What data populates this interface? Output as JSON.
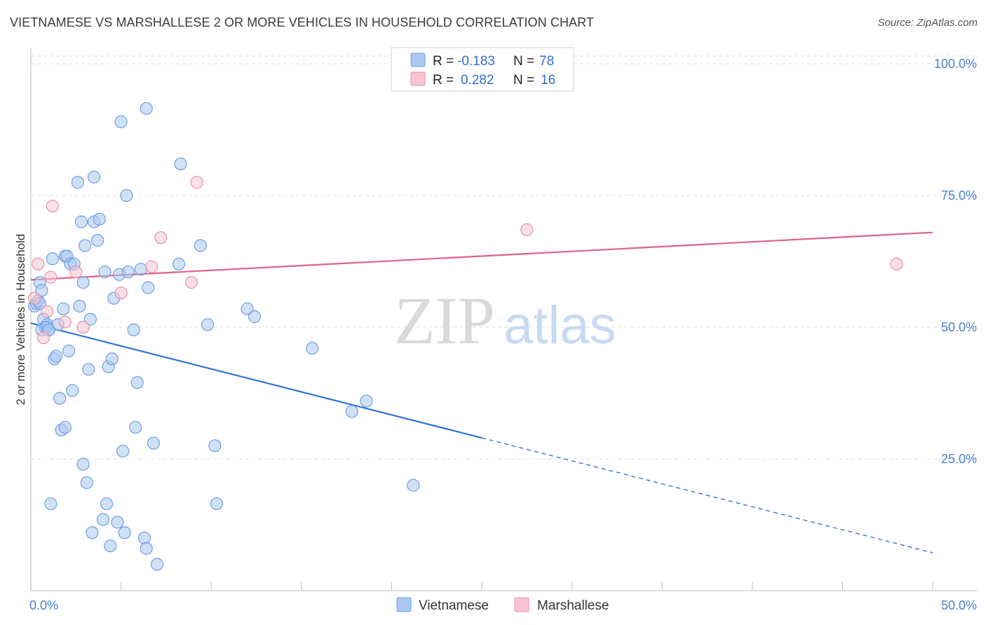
{
  "header": {
    "title": "VIETNAMESE VS MARSHALLESE 2 OR MORE VEHICLES IN HOUSEHOLD CORRELATION CHART",
    "source": "Source: ZipAtlas.com"
  },
  "watermark": {
    "zip": "ZIP",
    "atlas": "atlas"
  },
  "colors": {
    "vietnamese_fill": "#aac8f0",
    "vietnamese_stroke": "#6f9fe0",
    "vietnamese_line": "#2f74d0",
    "marshallese_fill": "#f8c4d2",
    "marshallese_stroke": "#eb90aa",
    "marshallese_line": "#e0608a",
    "tick_text": "#4a7fd1",
    "grid": "#dcdcdc"
  },
  "legend": {
    "rows": [
      {
        "r_label": "R =",
        "r_value": "-0.183",
        "n_label": "N =",
        "n_value": "78"
      },
      {
        "r_label": "R =",
        "r_value": "0.282",
        "n_label": "N =",
        "n_value": "16"
      }
    ]
  },
  "chart_data": {
    "type": "scatter",
    "title": "VIETNAMESE VS MARSHALLESE 2 OR MORE VEHICLES IN HOUSEHOLD CORRELATION CHART",
    "xlabel": "",
    "ylabel": "2 or more Vehicles in Household",
    "xlim": [
      0,
      50
    ],
    "ylim": [
      0,
      102
    ],
    "x_tick_labels": [
      "0.0%",
      "50.0%"
    ],
    "y_ticks": [
      25,
      50,
      75,
      100
    ],
    "y_tick_labels": [
      "25.0%",
      "50.0%",
      "75.0%",
      "100.0%"
    ],
    "grid": true,
    "legend_position": "top-center and bottom",
    "series": [
      {
        "name": "Vietnamese",
        "points": [
          [
            0.2,
            54.0
          ],
          [
            0.3,
            54.5
          ],
          [
            0.4,
            55.0
          ],
          [
            0.5,
            58.5
          ],
          [
            0.5,
            54.5
          ],
          [
            0.6,
            57.0
          ],
          [
            0.6,
            49.5
          ],
          [
            0.7,
            51.5
          ],
          [
            0.8,
            50.0
          ],
          [
            0.9,
            50.5
          ],
          [
            0.9,
            50.0
          ],
          [
            1.0,
            49.5
          ],
          [
            1.1,
            16.5
          ],
          [
            1.2,
            63.0
          ],
          [
            1.3,
            44.0
          ],
          [
            1.4,
            44.5
          ],
          [
            1.5,
            50.5
          ],
          [
            1.6,
            36.5
          ],
          [
            1.7,
            30.5
          ],
          [
            1.8,
            53.5
          ],
          [
            1.9,
            31.0
          ],
          [
            1.9,
            63.5
          ],
          [
            2.0,
            63.5
          ],
          [
            2.1,
            45.5
          ],
          [
            2.2,
            62.0
          ],
          [
            2.3,
            38.0
          ],
          [
            2.4,
            62.0
          ],
          [
            2.6,
            77.5
          ],
          [
            2.7,
            54.0
          ],
          [
            2.8,
            70.0
          ],
          [
            2.9,
            58.5
          ],
          [
            2.9,
            24.0
          ],
          [
            3.0,
            65.5
          ],
          [
            3.1,
            20.5
          ],
          [
            3.2,
            42.0
          ],
          [
            3.3,
            51.5
          ],
          [
            3.4,
            11.0
          ],
          [
            3.5,
            70.0
          ],
          [
            3.5,
            78.5
          ],
          [
            3.7,
            66.5
          ],
          [
            3.8,
            70.5
          ],
          [
            4.0,
            13.5
          ],
          [
            4.1,
            60.5
          ],
          [
            4.2,
            16.5
          ],
          [
            4.3,
            42.5
          ],
          [
            4.4,
            8.5
          ],
          [
            4.5,
            44.0
          ],
          [
            4.6,
            55.5
          ],
          [
            4.8,
            13.0
          ],
          [
            4.9,
            60.0
          ],
          [
            5.0,
            89.0
          ],
          [
            5.1,
            26.5
          ],
          [
            5.2,
            11.0
          ],
          [
            5.3,
            75.0
          ],
          [
            5.4,
            60.5
          ],
          [
            5.7,
            49.5
          ],
          [
            5.8,
            31.0
          ],
          [
            5.9,
            39.5
          ],
          [
            6.1,
            61.0
          ],
          [
            6.3,
            10.0
          ],
          [
            6.4,
            91.5
          ],
          [
            6.4,
            8.0
          ],
          [
            6.5,
            57.5
          ],
          [
            6.8,
            28.0
          ],
          [
            7.0,
            5.0
          ],
          [
            8.2,
            62.0
          ],
          [
            8.3,
            81.0
          ],
          [
            9.4,
            65.5
          ],
          [
            9.8,
            50.5
          ],
          [
            10.2,
            27.5
          ],
          [
            10.3,
            16.5
          ],
          [
            12.0,
            53.5
          ],
          [
            12.4,
            52.0
          ],
          [
            15.6,
            46.0
          ],
          [
            17.8,
            34.0
          ],
          [
            18.6,
            36.0
          ],
          [
            21.2,
            20.0
          ],
          [
            1.0,
            49.5
          ]
        ],
        "trend": {
          "x_start": 0,
          "y_start": 50.8,
          "x_solid_end": 25,
          "x_end": 50,
          "y_end": 7.2
        }
      },
      {
        "name": "Marshallese",
        "points": [
          [
            0.2,
            55.5
          ],
          [
            0.4,
            62.0
          ],
          [
            0.7,
            48.0
          ],
          [
            0.9,
            53.0
          ],
          [
            1.1,
            59.5
          ],
          [
            1.2,
            73.0
          ],
          [
            1.9,
            51.0
          ],
          [
            2.5,
            60.5
          ],
          [
            2.9,
            50.0
          ],
          [
            5.0,
            56.5
          ],
          [
            6.7,
            61.5
          ],
          [
            7.2,
            67.0
          ],
          [
            8.9,
            58.5
          ],
          [
            9.2,
            77.5
          ],
          [
            27.5,
            68.5
          ],
          [
            48.0,
            62.0
          ]
        ],
        "trend": {
          "x_start": 0,
          "y_start": 59.0,
          "x_end": 50,
          "y_end": 68.0
        }
      }
    ]
  }
}
